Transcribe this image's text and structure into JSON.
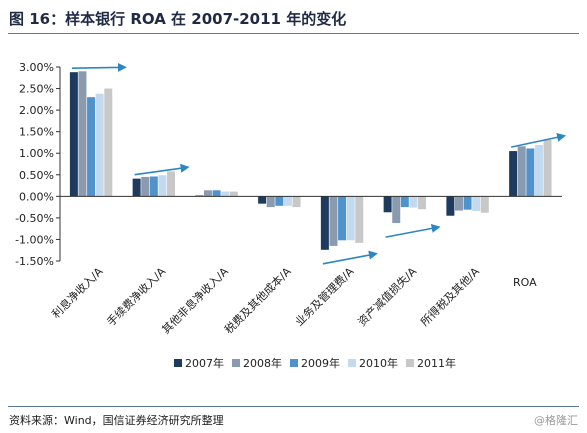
{
  "figure": {
    "title": "图 16：样本银行 ROA 在 2007-2011 年的变化",
    "source": "资料来源：Wind，国信证券经济研究所整理",
    "watermark": "@格隆汇"
  },
  "chart_data": {
    "type": "bar",
    "categories": [
      "利息净收入/A",
      "手续费净收入/A",
      "其他非息净收入/A",
      "税费及其他成本/A",
      "业务及管理费/A",
      "资产减值损失/A",
      "所得税及其他/A",
      "ROA"
    ],
    "series": [
      {
        "name": "2007年",
        "color": "#1f3a5f",
        "values": [
          2.88,
          0.41,
          0.02,
          -0.17,
          -1.24,
          -0.37,
          -0.45,
          1.05
        ]
      },
      {
        "name": "2008年",
        "color": "#8a9bb0",
        "values": [
          2.9,
          0.45,
          0.14,
          -0.25,
          -1.15,
          -0.62,
          -0.33,
          1.16
        ]
      },
      {
        "name": "2009年",
        "color": "#4f92cc",
        "values": [
          2.3,
          0.46,
          0.14,
          -0.22,
          -1.02,
          -0.25,
          -0.31,
          1.11
        ]
      },
      {
        "name": "2010年",
        "color": "#c3d9ee",
        "values": [
          2.38,
          0.49,
          0.11,
          -0.22,
          -1.02,
          -0.26,
          -0.34,
          1.19
        ]
      },
      {
        "name": "2011年",
        "color": "#c8c8c8",
        "values": [
          2.5,
          0.58,
          0.11,
          -0.25,
          -1.08,
          -0.3,
          -0.38,
          1.31
        ]
      }
    ],
    "ylim": [
      -1.5,
      3.0
    ],
    "yticks": [
      "3.00%",
      "2.50%",
      "2.00%",
      "1.50%",
      "1.00%",
      "0.50%",
      "0.00%",
      "-0.50%",
      "-1.00%",
      "-1.50%"
    ],
    "ytick_values": [
      3.0,
      2.5,
      2.0,
      1.5,
      1.0,
      0.5,
      0.0,
      -0.5,
      -1.0,
      -1.5
    ],
    "xlabel": "",
    "ylabel": "",
    "grid": false,
    "legend": "bottom",
    "arrow_color": "#2e86c1",
    "annotations": [
      {
        "type": "trend-arrow",
        "category": "利息净收入/A",
        "direction": "up"
      },
      {
        "type": "trend-arrow",
        "category": "手续费净收入/A",
        "direction": "up"
      },
      {
        "type": "trend-arrow",
        "category": "业务及管理费/A",
        "direction": "up"
      },
      {
        "type": "trend-arrow",
        "category": "资产减值损失/A",
        "direction": "up"
      },
      {
        "type": "trend-arrow",
        "category": "ROA",
        "direction": "up"
      }
    ]
  }
}
